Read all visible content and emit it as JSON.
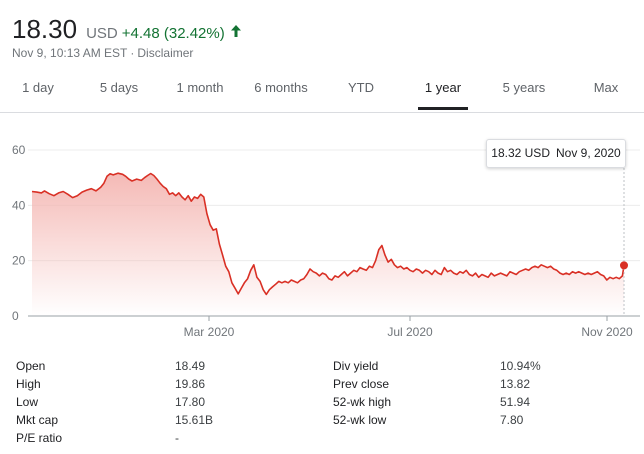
{
  "quote": {
    "price": "18.30",
    "currency": "USD",
    "change": "+4.48 (32.42%)",
    "timestamp": "Nov 9, 10:13 AM EST",
    "separator": "·",
    "disclaimer": "Disclaimer",
    "change_color": "#137333"
  },
  "tabs": [
    {
      "label": "1 day",
      "active": false
    },
    {
      "label": "5 days",
      "active": false
    },
    {
      "label": "1 month",
      "active": false
    },
    {
      "label": "6 months",
      "active": false
    },
    {
      "label": "YTD",
      "active": false
    },
    {
      "label": "1 year",
      "active": true
    },
    {
      "label": "5 years",
      "active": false
    },
    {
      "label": "Max",
      "active": false
    }
  ],
  "tooltip": {
    "value": "18.32 USD",
    "date": "Nov 9, 2020"
  },
  "chart_data": {
    "type": "area",
    "x_tick_labels": [
      "Mar 2020",
      "Jul 2020",
      "Nov 2020"
    ],
    "y_ticks": [
      0,
      20,
      40,
      60
    ],
    "ylim": [
      0,
      60
    ],
    "line_color": "#d93025",
    "fill_color": "#f4b6b2",
    "grid": true,
    "points": [
      [
        0,
        45.0
      ],
      [
        3,
        44.8
      ],
      [
        6,
        44.5
      ],
      [
        8,
        45.2
      ],
      [
        11,
        44.2
      ],
      [
        14,
        43.5
      ],
      [
        17,
        44.5
      ],
      [
        20,
        45.0
      ],
      [
        23,
        44.0
      ],
      [
        26,
        42.8
      ],
      [
        29,
        43.5
      ],
      [
        32,
        44.8
      ],
      [
        35,
        45.5
      ],
      [
        38,
        46.0
      ],
      [
        41,
        45.2
      ],
      [
        44,
        46.5
      ],
      [
        46,
        48.0
      ],
      [
        48,
        50.5
      ],
      [
        50,
        51.4
      ],
      [
        52,
        51.0
      ],
      [
        55,
        51.6
      ],
      [
        58,
        51.2
      ],
      [
        60,
        50.5
      ],
      [
        62,
        49.5
      ],
      [
        64,
        48.8
      ],
      [
        67,
        49.5
      ],
      [
        70,
        49.0
      ],
      [
        72,
        50.0
      ],
      [
        74,
        50.8
      ],
      [
        76,
        51.5
      ],
      [
        78,
        50.8
      ],
      [
        80,
        49.5
      ],
      [
        82,
        48.0
      ],
      [
        84,
        46.8
      ],
      [
        86,
        46.0
      ],
      [
        88,
        44.0
      ],
      [
        90,
        44.5
      ],
      [
        92,
        43.5
      ],
      [
        94,
        44.5
      ],
      [
        96,
        43.0
      ],
      [
        98,
        42.0
      ],
      [
        100,
        43.5
      ],
      [
        102,
        41.5
      ],
      [
        104,
        43.0
      ],
      [
        106,
        42.5
      ],
      [
        108,
        44.0
      ],
      [
        110,
        43.0
      ],
      [
        112,
        37.0
      ],
      [
        114,
        33.0
      ],
      [
        116,
        31.0
      ],
      [
        118,
        31.5
      ],
      [
        120,
        26.0
      ],
      [
        122,
        22.0
      ],
      [
        124,
        18.0
      ],
      [
        126,
        16.0
      ],
      [
        128,
        12.0
      ],
      [
        130,
        10.0
      ],
      [
        132,
        8.0
      ],
      [
        134,
        10.0
      ],
      [
        136,
        12.0
      ],
      [
        138,
        13.5
      ],
      [
        140,
        16.5
      ],
      [
        142,
        18.5
      ],
      [
        144,
        14.0
      ],
      [
        146,
        12.5
      ],
      [
        148,
        9.5
      ],
      [
        150,
        7.8
      ],
      [
        152,
        9.5
      ],
      [
        154,
        10.5
      ],
      [
        156,
        11.5
      ],
      [
        158,
        12.5
      ],
      [
        160,
        12.0
      ],
      [
        162,
        12.5
      ],
      [
        164,
        12.0
      ],
      [
        166,
        13.0
      ],
      [
        168,
        12.5
      ],
      [
        170,
        12.0
      ],
      [
        172,
        13.0
      ],
      [
        174,
        13.5
      ],
      [
        176,
        15.0
      ],
      [
        178,
        17.0
      ],
      [
        180,
        16.0
      ],
      [
        182,
        15.5
      ],
      [
        184,
        14.5
      ],
      [
        186,
        15.5
      ],
      [
        188,
        15.0
      ],
      [
        190,
        13.5
      ],
      [
        192,
        13.0
      ],
      [
        194,
        14.5
      ],
      [
        196,
        14.0
      ],
      [
        198,
        15.0
      ],
      [
        200,
        16.0
      ],
      [
        202,
        14.5
      ],
      [
        204,
        15.5
      ],
      [
        206,
        16.5
      ],
      [
        208,
        16.0
      ],
      [
        210,
        17.5
      ],
      [
        212,
        17.0
      ],
      [
        214,
        16.5
      ],
      [
        216,
        18.0
      ],
      [
        218,
        17.5
      ],
      [
        220,
        20.0
      ],
      [
        222,
        24.0
      ],
      [
        224,
        25.5
      ],
      [
        226,
        22.0
      ],
      [
        228,
        19.5
      ],
      [
        230,
        20.5
      ],
      [
        232,
        18.5
      ],
      [
        234,
        17.5
      ],
      [
        236,
        18.0
      ],
      [
        238,
        17.0
      ],
      [
        240,
        17.5
      ],
      [
        242,
        16.5
      ],
      [
        244,
        16.0
      ],
      [
        246,
        17.0
      ],
      [
        248,
        16.5
      ],
      [
        250,
        15.5
      ],
      [
        252,
        16.5
      ],
      [
        254,
        16.0
      ],
      [
        256,
        15.0
      ],
      [
        258,
        16.5
      ],
      [
        260,
        15.5
      ],
      [
        262,
        15.0
      ],
      [
        264,
        17.5
      ],
      [
        266,
        16.0
      ],
      [
        268,
        16.5
      ],
      [
        270,
        15.5
      ],
      [
        272,
        15.0
      ],
      [
        274,
        16.0
      ],
      [
        276,
        15.5
      ],
      [
        278,
        16.5
      ],
      [
        280,
        15.0
      ],
      [
        282,
        14.5
      ],
      [
        284,
        15.5
      ],
      [
        286,
        14.0
      ],
      [
        288,
        15.0
      ],
      [
        290,
        14.5
      ],
      [
        292,
        14.0
      ],
      [
        294,
        15.5
      ],
      [
        296,
        14.5
      ],
      [
        298,
        15.0
      ],
      [
        300,
        15.5
      ],
      [
        302,
        15.0
      ],
      [
        304,
        14.5
      ],
      [
        306,
        16.0
      ],
      [
        308,
        15.5
      ],
      [
        310,
        15.0
      ],
      [
        312,
        16.0
      ],
      [
        314,
        16.5
      ],
      [
        316,
        17.0
      ],
      [
        318,
        16.5
      ],
      [
        320,
        17.5
      ],
      [
        322,
        18.0
      ],
      [
        324,
        17.5
      ],
      [
        326,
        18.5
      ],
      [
        328,
        18.0
      ],
      [
        330,
        17.5
      ],
      [
        332,
        18.0
      ],
      [
        334,
        17.0
      ],
      [
        336,
        16.5
      ],
      [
        338,
        15.5
      ],
      [
        340,
        15.0
      ],
      [
        342,
        15.5
      ],
      [
        344,
        15.0
      ],
      [
        346,
        16.0
      ],
      [
        348,
        15.5
      ],
      [
        350,
        16.0
      ],
      [
        352,
        15.5
      ],
      [
        354,
        15.0
      ],
      [
        356,
        15.5
      ],
      [
        358,
        15.0
      ],
      [
        360,
        15.5
      ],
      [
        362,
        16.0
      ],
      [
        364,
        15.0
      ],
      [
        366,
        14.5
      ],
      [
        368,
        13.0
      ],
      [
        370,
        14.0
      ],
      [
        372,
        13.5
      ],
      [
        374,
        14.0
      ],
      [
        376,
        13.5
      ],
      [
        378,
        14.5
      ],
      [
        379,
        18.3
      ]
    ],
    "x_total": 379,
    "marker_value": 18.3
  },
  "stats": [
    {
      "label": "Open",
      "value": "18.49"
    },
    {
      "label": "High",
      "value": "19.86"
    },
    {
      "label": "Low",
      "value": "17.80"
    },
    {
      "label": "Mkt cap",
      "value": "15.61B"
    },
    {
      "label": "P/E ratio",
      "value": "-"
    },
    {
      "label": "Div yield",
      "value": "10.94%"
    },
    {
      "label": "Prev close",
      "value": "13.82"
    },
    {
      "label": "52-wk high",
      "value": "51.94"
    },
    {
      "label": "52-wk low",
      "value": "7.80"
    }
  ]
}
